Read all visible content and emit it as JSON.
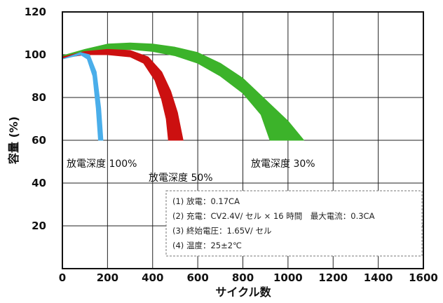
{
  "chart_data": {
    "type": "area",
    "xlabel": "サイクル数",
    "ylabel": "容量 (%)",
    "xlim": [
      0,
      1600
    ],
    "ylim": [
      0,
      120
    ],
    "x_ticks": [
      0,
      200,
      400,
      600,
      800,
      1000,
      1200,
      1400,
      1600
    ],
    "y_ticks": [
      20,
      40,
      60,
      80,
      100,
      120
    ],
    "grid": true,
    "series": [
      {
        "name": "放電深度 100%",
        "color": "#4aaeea",
        "upper": [
          [
            0,
            98
          ],
          [
            40,
            99.5
          ],
          [
            80,
            101
          ],
          [
            120,
            100
          ],
          [
            150,
            92
          ],
          [
            170,
            75
          ],
          [
            180,
            60
          ]
        ],
        "lower": [
          [
            0,
            98
          ],
          [
            40,
            99
          ],
          [
            80,
            100
          ],
          [
            110,
            98
          ],
          [
            135,
            90
          ],
          [
            150,
            75
          ],
          [
            160,
            60
          ]
        ]
      },
      {
        "name": "放電深度 50%",
        "color": "#cc1010",
        "upper": [
          [
            0,
            99
          ],
          [
            100,
            101.5
          ],
          [
            200,
            102.5
          ],
          [
            300,
            102
          ],
          [
            380,
            99
          ],
          [
            440,
            92
          ],
          [
            480,
            83
          ],
          [
            510,
            73
          ],
          [
            535,
            60
          ]
        ],
        "lower": [
          [
            0,
            98.5
          ],
          [
            100,
            100
          ],
          [
            200,
            100
          ],
          [
            300,
            99
          ],
          [
            360,
            96
          ],
          [
            410,
            88
          ],
          [
            440,
            79
          ],
          [
            460,
            70
          ],
          [
            470,
            60
          ]
        ]
      },
      {
        "name": "放電深度 30%",
        "color": "#3cb32a",
        "upper": [
          [
            0,
            99.5
          ],
          [
            100,
            102.5
          ],
          [
            200,
            105
          ],
          [
            300,
            105.5
          ],
          [
            400,
            105
          ],
          [
            500,
            103.5
          ],
          [
            600,
            101
          ],
          [
            700,
            96
          ],
          [
            800,
            89
          ],
          [
            900,
            79
          ],
          [
            1000,
            69
          ],
          [
            1070,
            60
          ]
        ],
        "lower": [
          [
            0,
            98.5
          ],
          [
            100,
            101
          ],
          [
            200,
            102
          ],
          [
            300,
            102.5
          ],
          [
            400,
            101.5
          ],
          [
            500,
            99.5
          ],
          [
            600,
            96
          ],
          [
            700,
            90
          ],
          [
            800,
            82
          ],
          [
            880,
            72
          ],
          [
            920,
            60
          ]
        ]
      }
    ],
    "annotations": [
      "(1) 放電：0.17CA",
      "(2) 充電：CV2.4V/ セル × 16 時間　最大電流：0.3CA",
      "(3) 終始電圧：1.65V/ セル",
      "(4) 温度：25±2℃"
    ]
  }
}
